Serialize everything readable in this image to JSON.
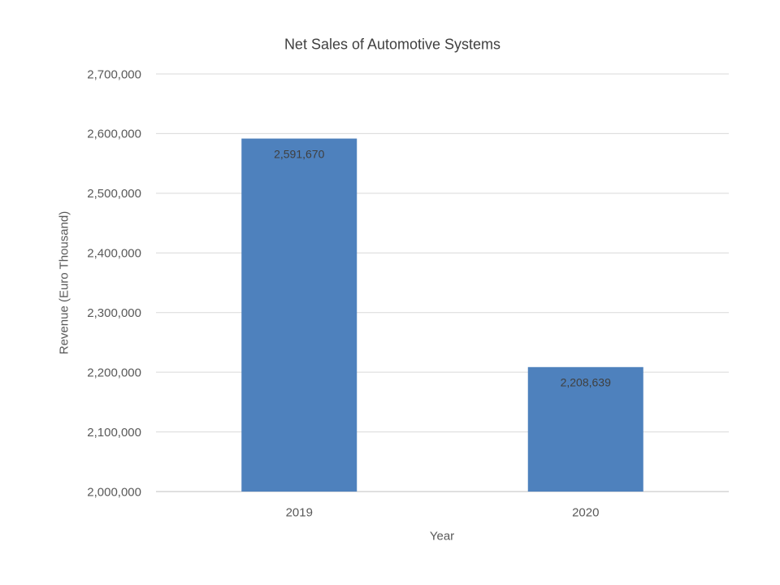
{
  "chart_data": {
    "type": "bar",
    "title": "Net Sales of Automotive Systems",
    "xlabel": "Year",
    "ylabel": "Revenue (Euro Thousand)",
    "categories": [
      "2019",
      "2020"
    ],
    "values": [
      2591670,
      2208639
    ],
    "value_labels": [
      "2,591,670",
      "2,208,639"
    ],
    "ylim": [
      2000000,
      2700000
    ],
    "ytick_step": 100000,
    "ytick_labels": [
      "2,000,000",
      "2,100,000",
      "2,200,000",
      "2,300,000",
      "2,400,000",
      "2,500,000",
      "2,600,000",
      "2,700,000"
    ],
    "grid": true,
    "legend_position": "none",
    "colors": {
      "bar": "#4E81BD",
      "title_text": "#404040",
      "axis_text": "#595959",
      "data_label_text": "#3F3F3F",
      "gridline": "#D9D9D9",
      "axis_line": "#BFBFBF",
      "background": "#FFFFFF"
    }
  }
}
